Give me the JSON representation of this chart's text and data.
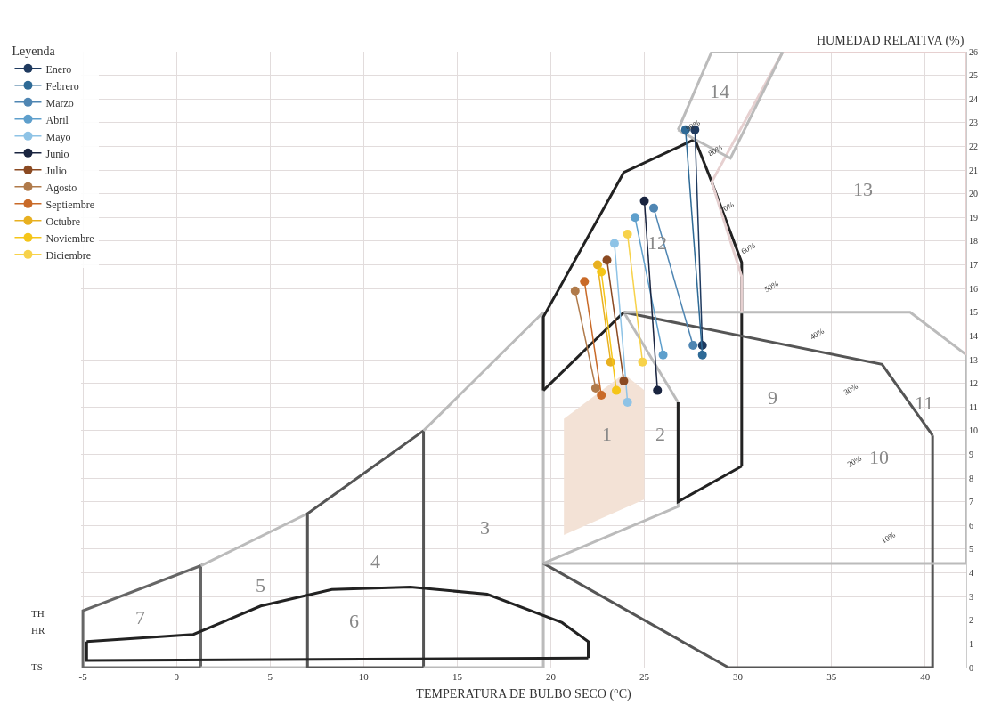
{
  "chart_data": {
    "type": "line",
    "xlabel": "TEMPERATURA DE BULBO SECO (°C)",
    "ylabel": "HUMEDAD RELATIVA (%)",
    "legend_title": "Leyenda",
    "xlim": [
      -5.1,
      42.2
    ],
    "ylim": [
      0,
      26
    ],
    "xticks": [
      -5,
      0,
      5,
      10,
      15,
      20,
      25,
      30,
      35,
      40
    ],
    "yticks": [
      0,
      1,
      2,
      3,
      4,
      5,
      6,
      7,
      8,
      9,
      10,
      11,
      12,
      13,
      14,
      15,
      16,
      17,
      18,
      19,
      20,
      21,
      22,
      23,
      24,
      25,
      26
    ],
    "grid": true,
    "legend": "top left",
    "series": [
      {
        "type": "area",
        "color": "#f3e2d6",
        "x": [
          20.7,
          20.7,
          23.9,
          25.0,
          25.0,
          20.7
        ],
        "values": [
          5.6,
          10.5,
          12.4,
          11.7,
          7.1,
          5.6
        ]
      },
      {
        "color": "#666666",
        "marker": "none",
        "x": [
          -5,
          -5,
          1.3,
          1.3
        ],
        "values": [
          0,
          2.4,
          4.3,
          0
        ]
      },
      {
        "color": "#666666",
        "marker": "none",
        "x": [
          -5,
          1.3
        ],
        "values": [
          0,
          0
        ]
      },
      {
        "color": "#bbbbbb",
        "marker": "none",
        "x": [
          1.3,
          7.0
        ],
        "values": [
          4.3,
          6.5
        ]
      },
      {
        "color": "#bbbbbb",
        "marker": "none",
        "x": [
          1.3,
          7.0
        ],
        "values": [
          0,
          0
        ]
      },
      {
        "color": "#555555",
        "marker": "none",
        "x": [
          7.0,
          7.0,
          13.2,
          13.2
        ],
        "values": [
          0,
          6.5,
          10.0,
          0
        ]
      },
      {
        "color": "#555555",
        "marker": "none",
        "x": [
          7.0,
          13.2
        ],
        "values": [
          0,
          0
        ]
      },
      {
        "color": "#bbbbbb",
        "marker": "none",
        "x": [
          13.2,
          19.6,
          19.6
        ],
        "values": [
          10.0,
          15.0,
          0
        ]
      },
      {
        "color": "#bbbbbb",
        "marker": "none",
        "x": [
          13.2,
          19.6
        ],
        "values": [
          0,
          0
        ]
      },
      {
        "color": "#bbbbbb",
        "marker": "none",
        "x": [
          19.6,
          26.8,
          26.8
        ],
        "values": [
          4.4,
          6.8,
          11.2
        ]
      },
      {
        "color": "#bbbbbb",
        "marker": "none",
        "x": [
          23.9,
          26.8
        ],
        "values": [
          15.0,
          11.2
        ]
      },
      {
        "color": "#222222",
        "marker": "none",
        "x": [
          19.6,
          19.6,
          23.9,
          27.7
        ],
        "values": [
          11.7,
          14.8,
          20.9,
          22.3
        ]
      },
      {
        "color": "#222222",
        "marker": "none",
        "x": [
          27.7,
          28.6,
          30.2,
          30.2
        ],
        "values": [
          22.3,
          20.5,
          17.1,
          8.5
        ]
      },
      {
        "color": "#222222",
        "marker": "none",
        "x": [
          26.8,
          26.8,
          30.2
        ],
        "values": [
          11.2,
          7.0,
          8.5
        ]
      },
      {
        "color": "#222222",
        "marker": "none",
        "x": [
          19.6,
          23.9
        ],
        "values": [
          11.7,
          15.0
        ]
      },
      {
        "color": "#555555",
        "marker": "none",
        "x": [
          19.6,
          29.5,
          40.4,
          40.4
        ],
        "values": [
          4.4,
          0,
          0,
          9.8
        ]
      },
      {
        "color": "#555555",
        "marker": "none",
        "x": [
          23.9,
          37.7,
          40.4
        ],
        "values": [
          15.0,
          12.8,
          9.8
        ]
      },
      {
        "color": "#bbbbbb",
        "marker": "none",
        "x": [
          19.6,
          42.2,
          42.2
        ],
        "values": [
          4.4,
          4.4,
          13.2
        ]
      },
      {
        "color": "#bbbbbb",
        "marker": "none",
        "x": [
          23.9,
          39.2,
          42.2
        ],
        "values": [
          15.0,
          15.0,
          13.2
        ]
      },
      {
        "color": "#e6d0d0",
        "marker": "none",
        "x": [
          28.6,
          30.2,
          30.2
        ],
        "values": [
          20.5,
          16.5,
          15.0
        ]
      },
      {
        "color": "#e6d0d0",
        "marker": "none",
        "x": [
          28.6,
          32.4,
          42.2,
          42.2
        ],
        "values": [
          20.5,
          26.0,
          26.0,
          13.2
        ]
      },
      {
        "color": "#bbbbbb",
        "marker": "none",
        "x": [
          26.8,
          28.6,
          32.4
        ],
        "values": [
          22.7,
          26.0,
          26.0
        ]
      },
      {
        "color": "#bbbbbb",
        "marker": "none",
        "x": [
          26.8,
          27.7,
          29.6,
          32.4
        ],
        "values": [
          22.7,
          22.3,
          21.5,
          26.0
        ]
      },
      {
        "color": "#222222",
        "marker": "none",
        "x": [
          -4.8,
          0.9,
          4.5,
          8.3,
          12.5,
          16.6,
          20.6,
          22.0,
          22.0
        ],
        "values": [
          1.1,
          1.4,
          2.6,
          3.3,
          3.4,
          3.1,
          1.9,
          1.1,
          0.4
        ]
      },
      {
        "color": "#222222",
        "marker": "none",
        "x": [
          -4.8,
          -4.8,
          22.0
        ],
        "values": [
          1.1,
          0.3,
          0.4
        ]
      },
      {
        "name": "Enero",
        "marker": "circle",
        "color": "#1f3a5f",
        "x": [
          27.7,
          28.1
        ],
        "values": [
          22.7,
          13.6
        ]
      },
      {
        "name": "Febrero",
        "marker": "circle",
        "color": "#2e6a96",
        "x": [
          27.2,
          28.1
        ],
        "values": [
          22.7,
          13.2
        ]
      },
      {
        "name": "Marzo",
        "marker": "circle",
        "color": "#4f86b3",
        "x": [
          25.5,
          27.6
        ],
        "values": [
          19.4,
          13.6
        ]
      },
      {
        "name": "Abril",
        "marker": "circle",
        "color": "#5e9fcc",
        "x": [
          24.5,
          26.0
        ],
        "values": [
          19.0,
          13.2
        ]
      },
      {
        "name": "Mayo",
        "marker": "circle",
        "color": "#8ec3e6",
        "x": [
          23.4,
          24.1
        ],
        "values": [
          17.9,
          11.2
        ]
      },
      {
        "name": "Junio",
        "marker": "circle",
        "color": "#1a2540",
        "x": [
          25.0,
          25.7
        ],
        "values": [
          19.7,
          11.7
        ]
      },
      {
        "name": "Julio",
        "marker": "circle",
        "color": "#8b4a22",
        "x": [
          23.0,
          23.9
        ],
        "values": [
          17.2,
          12.1
        ]
      },
      {
        "name": "Agosto",
        "marker": "circle",
        "color": "#b07a4a",
        "x": [
          21.3,
          22.4
        ],
        "values": [
          15.9,
          11.8
        ]
      },
      {
        "name": "Septiembre",
        "marker": "circle",
        "color": "#c96a28",
        "x": [
          21.8,
          22.7
        ],
        "values": [
          16.3,
          11.5
        ]
      },
      {
        "name": "Octubre",
        "marker": "circle",
        "color": "#e8b020",
        "x": [
          22.5,
          23.2
        ],
        "values": [
          17.0,
          12.9
        ]
      },
      {
        "name": "Noviembre",
        "marker": "circle",
        "color": "#f5c518",
        "x": [
          22.7,
          23.5
        ],
        "values": [
          16.7,
          11.7
        ]
      },
      {
        "name": "Diciembre",
        "marker": "circle",
        "color": "#f7d24a",
        "x": [
          24.1,
          24.9
        ],
        "values": [
          18.3,
          12.9
        ]
      }
    ],
    "annotations": [
      "1",
      "2",
      "3",
      "4",
      "5",
      "6",
      "7",
      "9",
      "10",
      "11",
      "12",
      "13",
      "14",
      "90%",
      "80%",
      "70%",
      "60%",
      "50%",
      "40%",
      "30%",
      "20%",
      "10%",
      "TH",
      "HR",
      "TS"
    ]
  }
}
